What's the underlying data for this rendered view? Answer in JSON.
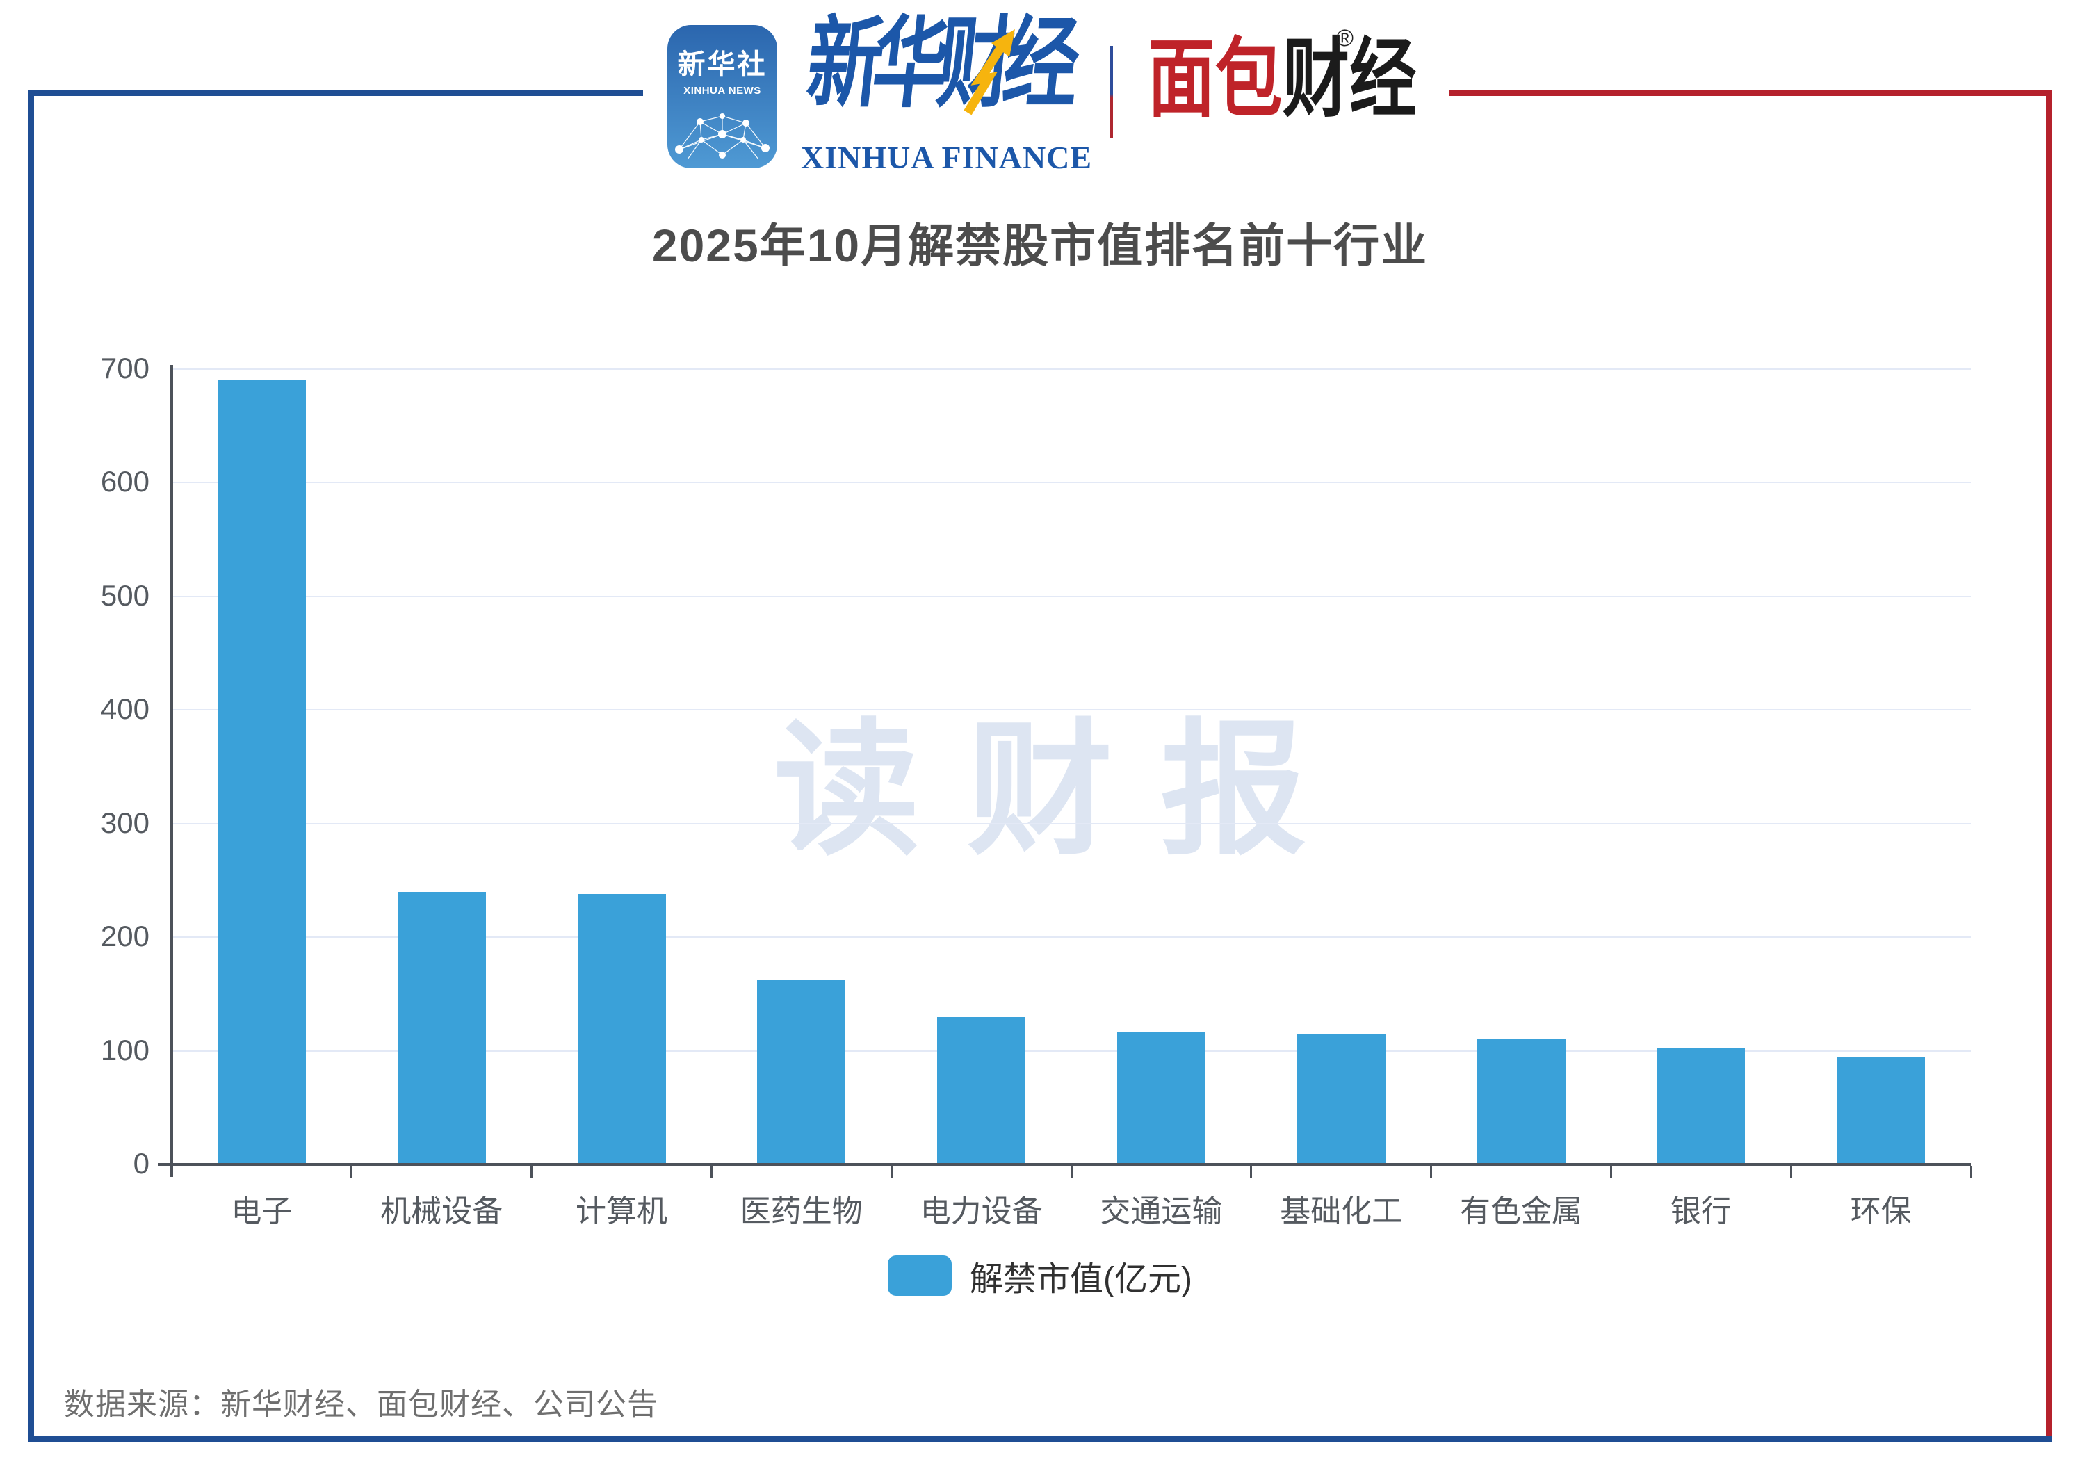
{
  "header": {
    "xinhua_icon": {
      "cn": "新华社",
      "en": "XINHUA NEWS"
    },
    "xinhua_finance": {
      "cn": "新华财经",
      "en": "XINHUA FINANCE"
    },
    "bread_finance": {
      "red_part": "面包",
      "black_part": "财经",
      "reg_mark": "®"
    }
  },
  "chart_data": {
    "type": "bar",
    "title": "2025年10月解禁股市值排名前十行业",
    "categories": [
      "电子",
      "机械设备",
      "计算机",
      "医药生物",
      "电力设备",
      "交通运输",
      "基础化工",
      "有色金属",
      "银行",
      "环保"
    ],
    "values": [
      690,
      240,
      238,
      163,
      130,
      117,
      115,
      111,
      103,
      95
    ],
    "series_name": "解禁市值(亿元)",
    "xlabel": "",
    "ylabel": "",
    "ylim": [
      0,
      700
    ],
    "yticks": [
      0,
      100,
      200,
      300,
      400,
      500,
      600,
      700
    ],
    "grid": true,
    "legend_position": "bottom",
    "bar_color": "#3aa1d9"
  },
  "legend": {
    "label": "解禁市值(亿元)"
  },
  "watermark": "读财报",
  "source": {
    "text": "数据来源：新华财经、面包财经、公司公告"
  },
  "colors": {
    "bar": "#3aa1d9",
    "frame_blue": "#1f4e94",
    "frame_red": "#b5212c",
    "gridline": "#e3e9f6",
    "axis": "#4d525a",
    "title": "#4c4c4c",
    "axis_label": "#555a60",
    "legend_text": "#303030",
    "source_text": "#6f6f6f",
    "watermark": "#dde5f2",
    "xinhua_blue": "#1c57a9",
    "bread_red": "#bf2329",
    "bread_black": "#1b1b1b"
  }
}
